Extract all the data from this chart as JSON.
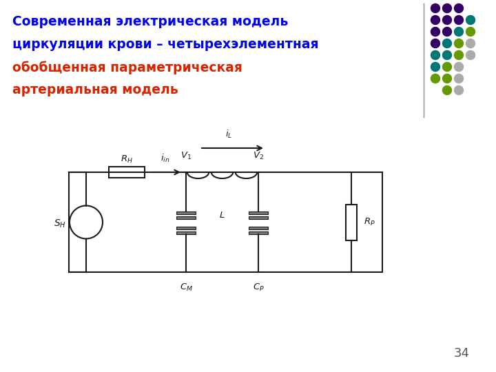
{
  "title_line1": "Современная электрическая модель",
  "title_line2": "циркуляции крови – четырехэлементная",
  "title_line3": "обобщенная параметрическая",
  "title_line4": "артериальная модель",
  "title_color_blue": "#0000EE",
  "title_color_red": "#DD2200",
  "slide_number": "34",
  "bg_color": "#FFFFFF",
  "circuit_color": "#1a1a1a",
  "dot_colors": {
    "purple": "#330066",
    "teal": "#007777",
    "green": "#669900",
    "gray": "#AAAAAA"
  },
  "divider_color": "#888888"
}
